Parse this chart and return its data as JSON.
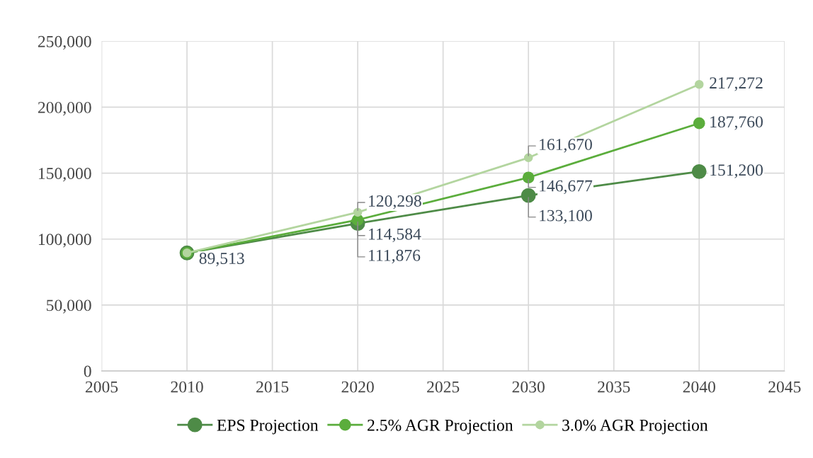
{
  "chart_data": {
    "type": "line",
    "x": [
      2010,
      2020,
      2030,
      2040
    ],
    "series": [
      {
        "name": "EPS Projection",
        "color": "#4e8b47",
        "values": [
          89513,
          111876,
          133100,
          151200
        ],
        "value_labels": [
          "89,513",
          "111,876",
          "133,100",
          "151,200"
        ]
      },
      {
        "name": "2.5% AGR Projection",
        "color": "#5bad3c",
        "values": [
          89513,
          114584,
          146677,
          187760
        ],
        "value_labels": [
          null,
          "114,584",
          "146,677",
          "187,760"
        ]
      },
      {
        "name": "3.0% AGR Projection",
        "color": "#b3d59f",
        "values": [
          89513,
          120298,
          161670,
          217272
        ],
        "value_labels": [
          null,
          "120,298",
          "161,670",
          "217,272"
        ]
      }
    ],
    "xlim": [
      2005,
      2045
    ],
    "xticks": [
      2005,
      2010,
      2015,
      2020,
      2025,
      2030,
      2035,
      2040,
      2045
    ],
    "ylim": [
      0,
      250000
    ],
    "yticks": [
      {
        "value": 0,
        "label": "0"
      },
      {
        "value": 50000,
        "label": "50,000"
      },
      {
        "value": 100000,
        "label": "100,000"
      },
      {
        "value": 150000,
        "label": "150,000"
      },
      {
        "value": 200000,
        "label": "200,000"
      },
      {
        "value": 250000,
        "label": "250,000"
      }
    ],
    "grid": true,
    "legend": "bottom",
    "marker": "circle",
    "line_style": "solid"
  }
}
